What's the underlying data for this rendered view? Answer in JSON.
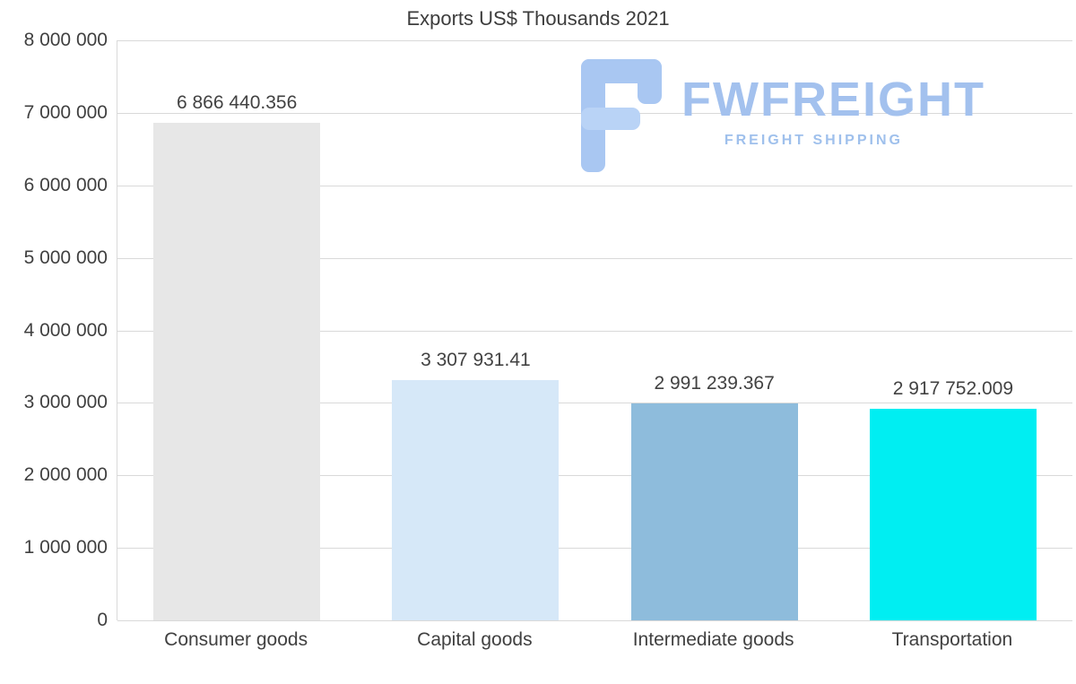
{
  "title": "Exports US$ Thousands 2021",
  "watermark": {
    "brand": "FWFREIGHT",
    "tagline": "FREIGHT SHIPPING",
    "color": "#a3c1ee"
  },
  "chart_data": {
    "type": "bar",
    "title": "Exports US$ Thousands 2021",
    "categories": [
      "Consumer goods",
      "Capital goods",
      "Intermediate goods",
      "Transportation"
    ],
    "values": [
      6866440.356,
      3307931.41,
      2991239.367,
      2917752.009
    ],
    "value_labels": [
      "6 866 440.356",
      "3 307 931.41",
      "2 991 239.367",
      "2 917 752.009"
    ],
    "bar_colors": [
      "#e7e7e7",
      "#d6e8f8",
      "#8ebcdc",
      "#00eef2"
    ],
    "xlabel": "",
    "ylabel": "",
    "ylim": [
      0,
      8000000
    ],
    "ytick_interval": 1000000,
    "ytick_labels": [
      "0",
      "1 000 000",
      "2 000 000",
      "3 000 000",
      "4 000 000",
      "5 000 000",
      "6 000 000",
      "7 000 000",
      "8 000 000"
    ],
    "grid": true,
    "legend": "none"
  }
}
